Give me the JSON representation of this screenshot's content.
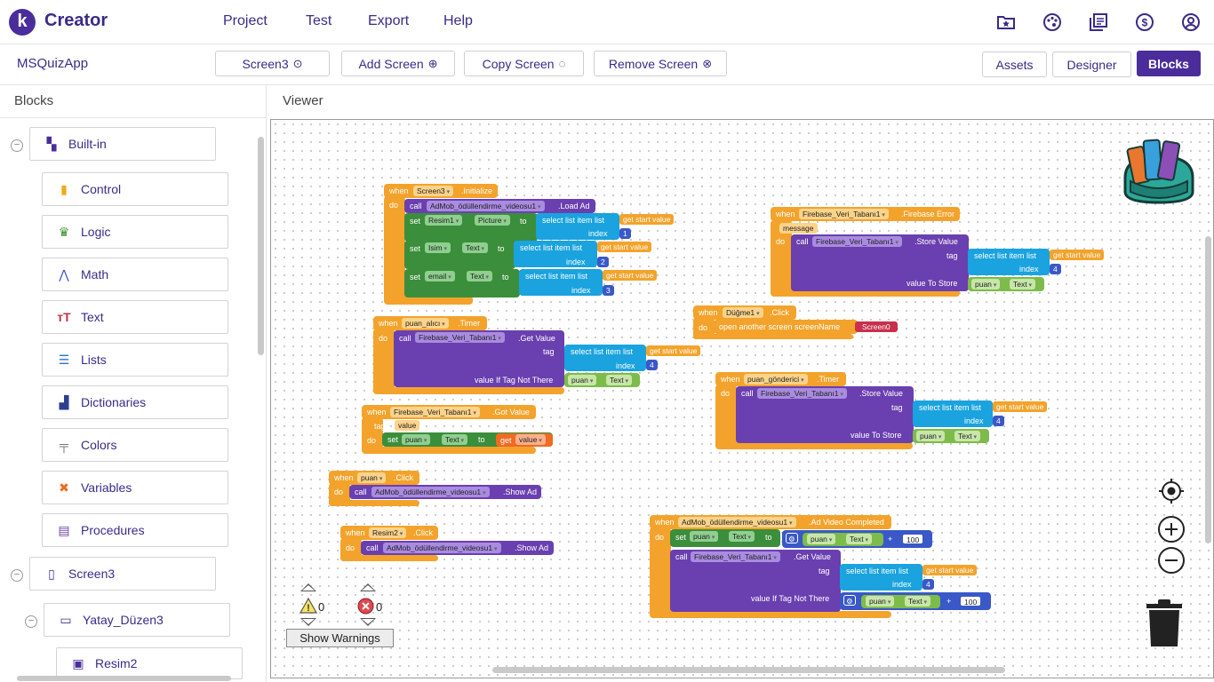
{
  "app": {
    "logo_letter": "k",
    "name": "Creator"
  },
  "menu": [
    "Project",
    "Test",
    "Export",
    "Help"
  ],
  "top_icons": [
    "folder-star-icon",
    "palette-icon",
    "gallery-icon",
    "dollar-icon",
    "account-icon"
  ],
  "project_name": "MSQuizApp",
  "toolbar": {
    "screen_select": "Screen3",
    "add_screen": "Add Screen",
    "copy_screen": "Copy Screen",
    "remove_screen": "Remove Screen",
    "assets": "Assets",
    "designer": "Designer",
    "blocks": "Blocks"
  },
  "blocks_panel": {
    "title": "Blocks",
    "builtin": "Built-in",
    "items": [
      "Control",
      "Logic",
      "Math",
      "Text",
      "Lists",
      "Dictionaries",
      "Colors",
      "Variables",
      "Procedures"
    ],
    "screen": "Screen3",
    "arrangement": "Yatay_Düzen3",
    "component": "Resim2"
  },
  "viewer": {
    "title": "Viewer",
    "warnings_count": "0",
    "errors_count": "0",
    "show_warnings": "Show Warnings"
  },
  "blocks": {
    "init_when": "when",
    "init_comp": "Screen3",
    "init_event": ".Initialize",
    "init_do": "do",
    "init_call": "call",
    "init_admob": "AdMob_ödüllendirme_videosu1",
    "init_method": ".Load Ad",
    "set": "set",
    "to": "to",
    "resim1": "Resim1",
    "picture": "Picture",
    "isim": "Isim",
    "text": "Text",
    "email": "email",
    "select_list_item": "select list item  list",
    "index": "index",
    "get_start_value": "get start value",
    "idx1": "1",
    "idx2": "2",
    "idx3": "3",
    "idx4": "4",
    "fb_when": "when",
    "fb_comp": "Firebase_Veri_Tabanı1",
    "fb_event": ".Firebase Error",
    "fb_message": "message",
    "fb_call": "call",
    "fb_store": ".Store Value",
    "tag": "tag",
    "value_to_store": "value To Store",
    "puan": "puan",
    "timer1_comp": "puan_alıcı",
    "timer_event": ".Timer",
    "get_value": ".Get Value",
    "value_if_tag": "value If Tag Not There",
    "btn_comp": "Düğme1",
    "click_event": ".Click",
    "open_screen": "open another screen  screenName",
    "screen0": "Screen0",
    "timer2_comp": "puan_gönderici",
    "gotvalue_event": ".Got Value",
    "value": "value",
    "get": "get",
    "puan_comp": "puan",
    "show_ad": ".Show Ad",
    "resim2_comp": "Resim2",
    "adcomp_event": ".Ad Video Completed",
    "plus": "+",
    "n100": "100"
  }
}
